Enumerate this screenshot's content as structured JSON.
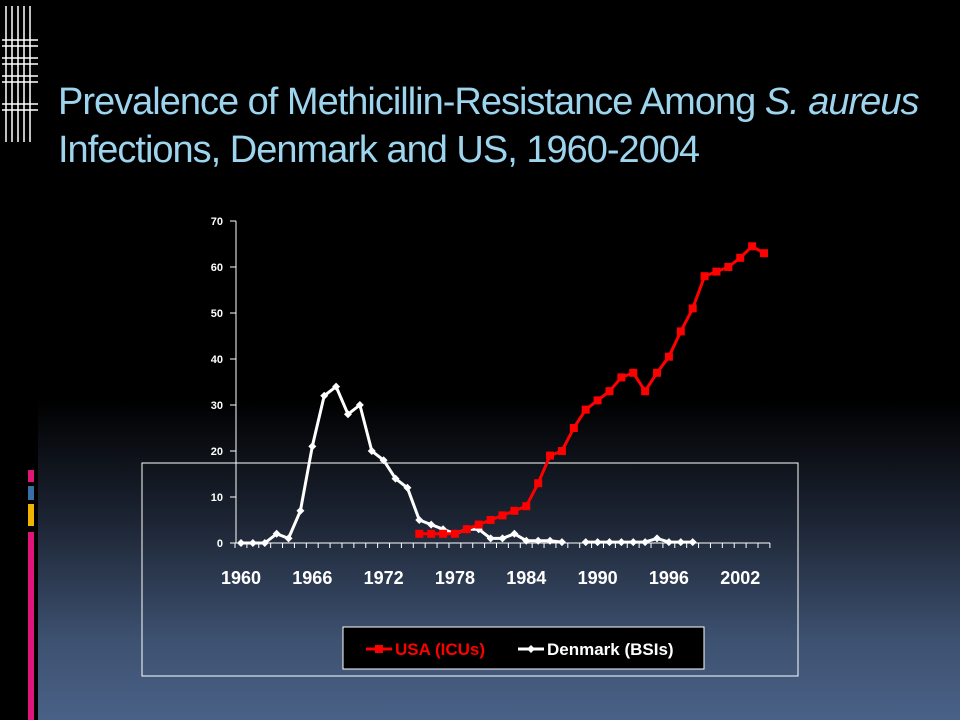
{
  "title": {
    "part1": "Prevalence of Methicillin-Resistance Among ",
    "italic1": "S. aureus",
    "part2": " Infections, Denmark and US, 1960-2004"
  },
  "colors": {
    "title": "#9dd5ee",
    "usa": "#ff0000",
    "denmark": "#ffffff",
    "accent_pink": "#e0157a",
    "accent_blue": "#3a6ea5",
    "accent_gold": "#f0b400"
  },
  "chart_data": {
    "type": "line",
    "xlim": [
      1960,
      2004
    ],
    "ylim": [
      0,
      70
    ],
    "y_ticks": [
      0,
      10,
      20,
      30,
      40,
      50,
      60,
      70
    ],
    "x_tick_labels": [
      "1960",
      "1966",
      "1972",
      "1978",
      "1984",
      "1990",
      "1996",
      "2002"
    ],
    "legend_position": "bottom",
    "series": [
      {
        "name": "USA (ICUs)",
        "color": "#ff0000",
        "marker": "square",
        "points": [
          [
            1975,
            2
          ],
          [
            1976,
            2
          ],
          [
            1977,
            2
          ],
          [
            1978,
            2
          ],
          [
            1979,
            3
          ],
          [
            1980,
            4
          ],
          [
            1981,
            5
          ],
          [
            1982,
            6
          ],
          [
            1983,
            7
          ],
          [
            1984,
            8
          ],
          [
            1985,
            13
          ],
          [
            1986,
            19
          ],
          [
            1987,
            20
          ],
          [
            1988,
            25
          ],
          [
            1989,
            29
          ],
          [
            1990,
            31
          ],
          [
            1991,
            33
          ],
          [
            1992,
            36
          ],
          [
            1993,
            37
          ],
          [
            1994,
            33
          ],
          [
            1995,
            37
          ],
          [
            1996,
            40.5
          ],
          [
            1997,
            46
          ],
          [
            1998,
            51
          ],
          [
            1999,
            58
          ],
          [
            2000,
            59
          ],
          [
            2001,
            60
          ],
          [
            2002,
            62
          ],
          [
            2003,
            64.5
          ],
          [
            2004,
            63
          ]
        ]
      },
      {
        "name": "Denmark (BSIs)",
        "color": "#ffffff",
        "marker": "diamond",
        "points": [
          [
            1960,
            0
          ],
          [
            1961,
            0
          ],
          [
            1962,
            0
          ],
          [
            1963,
            2
          ],
          [
            1964,
            1
          ],
          [
            1965,
            7
          ],
          [
            1966,
            21
          ],
          [
            1967,
            32
          ],
          [
            1968,
            34
          ],
          [
            1969,
            28
          ],
          [
            1970,
            30
          ],
          [
            1971,
            20
          ],
          [
            1972,
            18
          ],
          [
            1973,
            14
          ],
          [
            1974,
            12
          ],
          [
            1975,
            5
          ],
          [
            1976,
            4
          ],
          [
            1977,
            3
          ],
          [
            1978,
            2
          ],
          [
            1979,
            3
          ],
          [
            1980,
            3
          ],
          [
            1981,
            1
          ],
          [
            1982,
            1
          ],
          [
            1983,
            2
          ],
          [
            1984,
            0.5
          ],
          [
            1985,
            0.5
          ],
          [
            1986,
            0.5
          ],
          [
            1987,
            0.2
          ]
        ],
        "points_segment2": [
          [
            1989,
            0.2
          ],
          [
            1990,
            0.2
          ],
          [
            1991,
            0.2
          ],
          [
            1992,
            0.2
          ],
          [
            1993,
            0.2
          ],
          [
            1994,
            0.2
          ],
          [
            1995,
            1
          ],
          [
            1996,
            0.2
          ],
          [
            1997,
            0.2
          ],
          [
            1998,
            0.2
          ]
        ]
      }
    ]
  }
}
